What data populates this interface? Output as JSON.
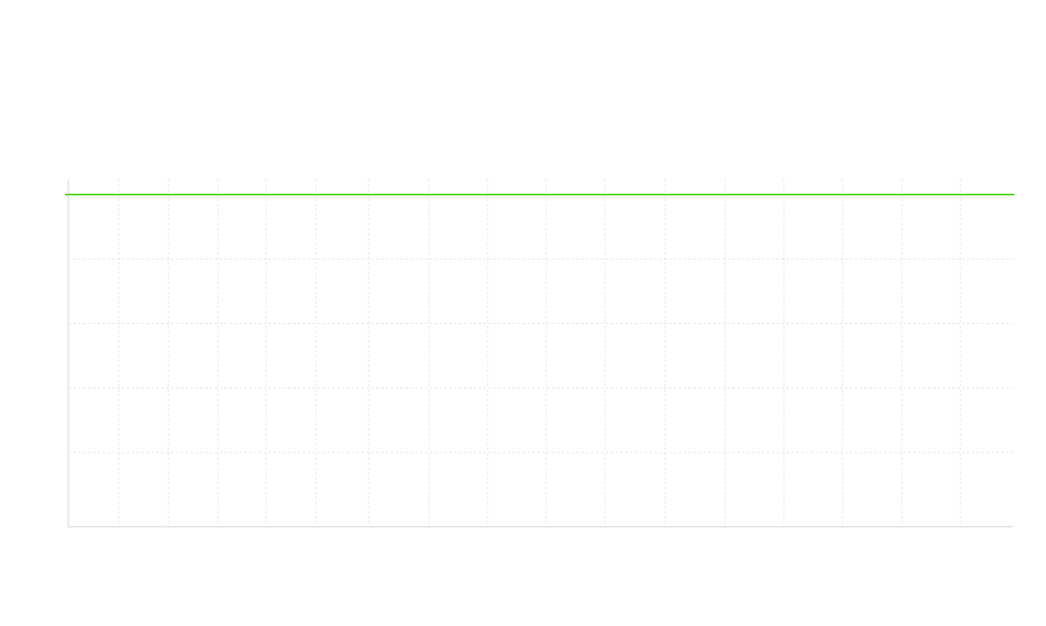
{
  "chart_data": {
    "type": "line",
    "title": "",
    "xlabel": "",
    "ylabel": "",
    "x": [
      0,
      16
    ],
    "series": [
      {
        "values": [
          5,
          5
        ],
        "color": "#4cd60a"
      }
    ],
    "xlim": [
      0,
      16
    ],
    "ylim": [
      -0.15,
      5.24
    ],
    "x_grid_ticks": [
      1,
      2,
      3,
      4,
      5,
      6,
      7,
      8,
      9,
      10,
      11,
      12,
      13,
      14,
      15
    ],
    "y_grid_ticks": [
      1,
      2,
      3,
      4
    ],
    "grid": true,
    "grid_color": "#e0e0e0",
    "axis_color": "#e6e6e6",
    "legend": "none"
  }
}
